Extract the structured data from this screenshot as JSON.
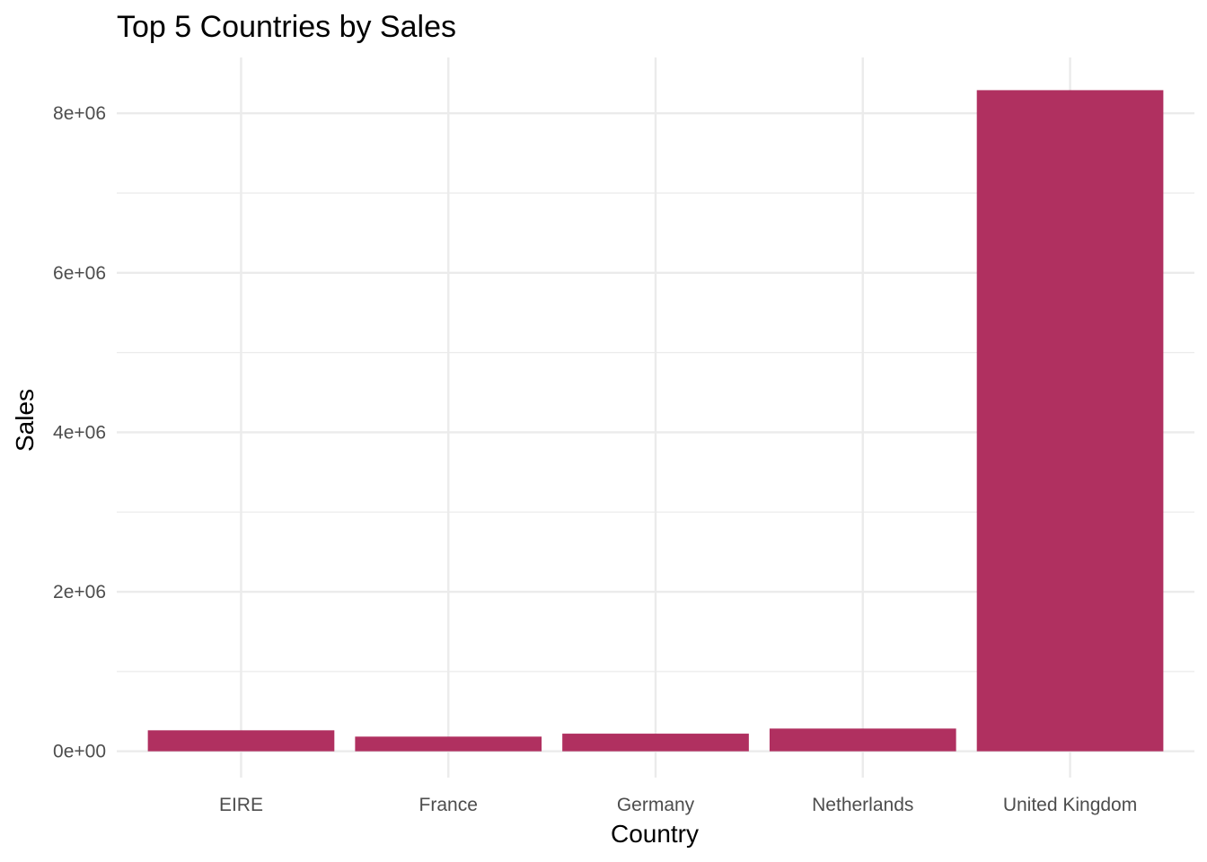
{
  "chart_data": {
    "type": "bar",
    "title": "Top 5 Countries by Sales",
    "xlabel": "Country",
    "ylabel": "Sales",
    "categories": [
      "EIRE",
      "France",
      "Germany",
      "Netherlands",
      "United Kingdom"
    ],
    "values": [
      263000,
      184000,
      221000,
      285000,
      8290000
    ],
    "ylim": [
      -330000,
      8700000
    ],
    "y_ticks": [
      0,
      2000000,
      4000000,
      6000000,
      8000000
    ],
    "y_tick_labels": [
      "0e+00",
      "2e+06",
      "4e+06",
      "6e+06",
      "8e+06"
    ],
    "y_minor_ticks": [
      1000000,
      3000000,
      5000000,
      7000000
    ],
    "grid": true,
    "legend": "none",
    "bar_color": "#B03060",
    "grid_color": "#EBEBEB"
  }
}
